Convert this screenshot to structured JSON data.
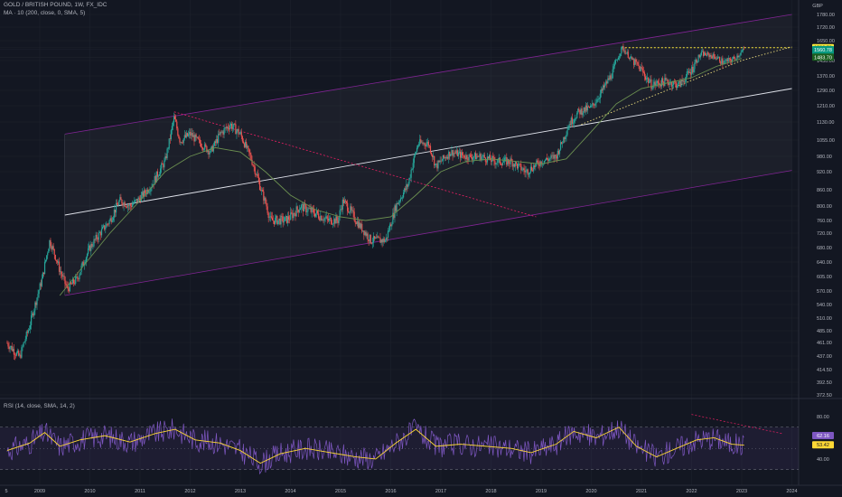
{
  "legend": {
    "title": "GOLD / BRITISH POUND, 1W, FX_IDC",
    "ma": "MA · 10 (200, close, 0, SMA, 5)",
    "rsi": "RSI (14, close, SMA, 14, 2)"
  },
  "colors": {
    "background": "#131722",
    "grid": "#1e222d",
    "up": "#26a69a",
    "down": "#ef5350",
    "channel": "#9c27b0",
    "midline": "#e0e3eb",
    "downtrend": "#e91e63",
    "resistance": "#ffeb3b",
    "ma": "#6b8f50",
    "rsi": "#7e57c2",
    "rsi_ma": "#fdd835",
    "price_green": "#089981"
  },
  "chart_data": [
    {
      "type": "candlestick",
      "currency": "GBP",
      "x_axis_labels": [
        "5",
        "2009",
        "2010",
        "2011",
        "2012",
        "2013",
        "2014",
        "2015",
        "2016",
        "2017",
        "2018",
        "2019",
        "2020",
        "2021",
        "2022",
        "2023",
        "2024"
      ],
      "y_axis_labels": [
        "1780.00",
        "1720.00",
        "1650.00",
        "1580.79",
        "1560.78",
        "10:14:37",
        "1483.70",
        "1450.00",
        "1370.00",
        "1290.00",
        "1210.00",
        "1130.00",
        "1055.00",
        "980.00",
        "920.00",
        "860.00",
        "800.00",
        "760.00",
        "720.00",
        "680.00",
        "640.00",
        "605.00",
        "570.00",
        "540.00",
        "510.00",
        "485.00",
        "461.00",
        "437.00",
        "414.50",
        "392.50",
        "372.50"
      ],
      "ylim": [
        372.5,
        1780
      ],
      "price_path": [
        [
          2008.35,
          460
        ],
        [
          2008.6,
          435
        ],
        [
          2008.8,
          495
        ],
        [
          2009.05,
          600
        ],
        [
          2009.2,
          700
        ],
        [
          2009.4,
          620
        ],
        [
          2009.55,
          575
        ],
        [
          2009.75,
          600
        ],
        [
          2010.0,
          680
        ],
        [
          2010.4,
          760
        ],
        [
          2010.6,
          820
        ],
        [
          2010.8,
          800
        ],
        [
          2011.0,
          830
        ],
        [
          2011.25,
          880
        ],
        [
          2011.5,
          960
        ],
        [
          2011.68,
          1150
        ],
        [
          2011.8,
          1050
        ],
        [
          2012.0,
          1080
        ],
        [
          2012.2,
          1040
        ],
        [
          2012.4,
          1000
        ],
        [
          2012.6,
          1080
        ],
        [
          2012.8,
          1120
        ],
        [
          2013.0,
          1080
        ],
        [
          2013.2,
          980
        ],
        [
          2013.45,
          840
        ],
        [
          2013.6,
          760
        ],
        [
          2013.9,
          760
        ],
        [
          2014.0,
          770
        ],
        [
          2014.2,
          800
        ],
        [
          2014.5,
          780
        ],
        [
          2014.75,
          760
        ],
        [
          2014.95,
          760
        ],
        [
          2015.05,
          820
        ],
        [
          2015.35,
          750
        ],
        [
          2015.6,
          700
        ],
        [
          2015.9,
          700
        ],
        [
          2016.1,
          800
        ],
        [
          2016.35,
          880
        ],
        [
          2016.55,
          1040
        ],
        [
          2016.75,
          1040
        ],
        [
          2016.9,
          940
        ],
        [
          2017.2,
          1000
        ],
        [
          2017.5,
          980
        ],
        [
          2017.8,
          980
        ],
        [
          2018.1,
          960
        ],
        [
          2018.4,
          960
        ],
        [
          2018.7,
          920
        ],
        [
          2019.0,
          960
        ],
        [
          2019.3,
          980
        ],
        [
          2019.55,
          1120
        ],
        [
          2019.75,
          1180
        ],
        [
          2020.0,
          1200
        ],
        [
          2020.2,
          1280
        ],
        [
          2020.45,
          1400
        ],
        [
          2020.62,
          1580
        ],
        [
          2020.8,
          1460
        ],
        [
          2021.0,
          1400
        ],
        [
          2021.2,
          1320
        ],
        [
          2021.5,
          1340
        ],
        [
          2021.75,
          1320
        ],
        [
          2022.0,
          1400
        ],
        [
          2022.2,
          1520
        ],
        [
          2022.45,
          1490
        ],
        [
          2022.65,
          1440
        ],
        [
          2022.85,
          1470
        ],
        [
          2023.05,
          1560
        ]
      ],
      "moving_average": {
        "period": 200,
        "path": [
          [
            2009.4,
            560
          ],
          [
            2009.8,
            620
          ],
          [
            2010.4,
            720
          ],
          [
            2011.0,
            820
          ],
          [
            2011.5,
            920
          ],
          [
            2012.0,
            980
          ],
          [
            2012.5,
            1020
          ],
          [
            2013.0,
            1000
          ],
          [
            2013.5,
            920
          ],
          [
            2014.0,
            840
          ],
          [
            2014.5,
            790
          ],
          [
            2015.0,
            770
          ],
          [
            2015.5,
            760
          ],
          [
            2016.0,
            770
          ],
          [
            2016.5,
            840
          ],
          [
            2017.0,
            920
          ],
          [
            2017.5,
            960
          ],
          [
            2018.0,
            970
          ],
          [
            2018.5,
            960
          ],
          [
            2019.0,
            950
          ],
          [
            2019.5,
            970
          ],
          [
            2020.0,
            1090
          ],
          [
            2020.5,
            1220
          ],
          [
            2021.0,
            1300
          ],
          [
            2021.5,
            1330
          ],
          [
            2022.0,
            1360
          ],
          [
            2022.5,
            1420
          ],
          [
            2023.0,
            1470
          ]
        ]
      },
      "rising_channel": {
        "upper": [
          [
            2009.5,
            1080
          ],
          [
            2024.0,
            1780
          ]
        ],
        "middle": [
          [
            2009.5,
            775
          ],
          [
            2024.0,
            1300
          ]
        ],
        "lower": [
          [
            2009.5,
            560
          ],
          [
            2024.0,
            925
          ]
        ]
      },
      "downtrend_line": [
        [
          2011.68,
          1180
        ],
        [
          2018.9,
          770
        ]
      ],
      "resistance_line": [
        [
          2020.6,
          1580
        ],
        [
          2024.0,
          1580
        ]
      ],
      "support_line": [
        [
          2019.8,
          1120
        ],
        [
          2023.0,
          1450
        ],
        [
          2024.0,
          1590
        ]
      ],
      "last_price": 1560.78,
      "price_labels": {
        "resistance": "1580.79",
        "last": "1560.78",
        "countdown": "10:14:37",
        "ma": "1483.70"
      }
    },
    {
      "type": "line",
      "name": "RSI",
      "ylim": [
        20,
        90
      ],
      "y_axis_labels": [
        "80.00",
        "62.16",
        "53.42",
        "40.00"
      ],
      "overbought": 70,
      "oversold": 30,
      "last_rsi": 62.16,
      "last_rsi_ma": 53.42,
      "rsi_ma_path": [
        [
          2008.35,
          48
        ],
        [
          2008.8,
          55
        ],
        [
          2009.1,
          65
        ],
        [
          2009.4,
          52
        ],
        [
          2009.8,
          58
        ],
        [
          2010.3,
          62
        ],
        [
          2010.8,
          56
        ],
        [
          2011.3,
          64
        ],
        [
          2011.7,
          68
        ],
        [
          2012.1,
          58
        ],
        [
          2012.6,
          55
        ],
        [
          2013.0,
          48
        ],
        [
          2013.4,
          36
        ],
        [
          2013.8,
          45
        ],
        [
          2014.3,
          50
        ],
        [
          2014.8,
          46
        ],
        [
          2015.3,
          42
        ],
        [
          2015.7,
          40
        ],
        [
          2016.1,
          55
        ],
        [
          2016.5,
          68
        ],
        [
          2016.9,
          52
        ],
        [
          2017.4,
          54
        ],
        [
          2017.9,
          52
        ],
        [
          2018.4,
          50
        ],
        [
          2018.8,
          46
        ],
        [
          2019.3,
          54
        ],
        [
          2019.65,
          66
        ],
        [
          2020.1,
          60
        ],
        [
          2020.55,
          70
        ],
        [
          2020.9,
          52
        ],
        [
          2021.3,
          42
        ],
        [
          2021.7,
          50
        ],
        [
          2022.1,
          58
        ],
        [
          2022.45,
          60
        ],
        [
          2022.8,
          54
        ],
        [
          2023.05,
          53
        ]
      ]
    }
  ]
}
